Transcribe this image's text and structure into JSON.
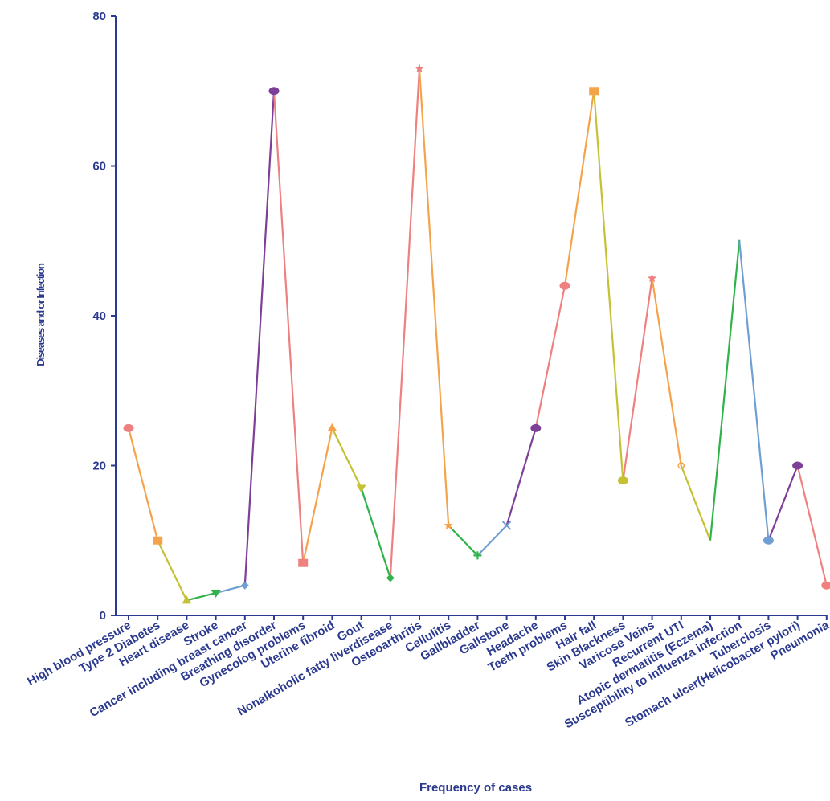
{
  "chart_data": {
    "type": "line",
    "xlabel": "Frequency of cases",
    "ylabel": "Diseases and or Infection",
    "ylim": [
      0,
      80
    ],
    "yticks": [
      0,
      20,
      40,
      60,
      80
    ],
    "grid": false,
    "categories": [
      "High blood pressure",
      "Type 2 Diabetes",
      "Heart disease",
      "Stroke",
      "Cancer including breast cancer",
      "Breathing disorder",
      "Gynecolog problems",
      "Uterine fibroid",
      "Gout",
      "Nonalkoholic fatty liverdisease",
      "Osteoarthritis",
      "Cellulitis",
      "Gallbladder",
      "Gallstone",
      "Headache",
      "Teeth problems",
      "Hair fall",
      "Skin Blackness",
      "Varicose Veins",
      "Recurrent UTI",
      "Atopic dermatitis (Eczema)",
      "Susceptibility to influenza infection",
      "Tuberclosis",
      "Stomach ulcer(Helicobacter pylori)",
      "Pneumonia"
    ],
    "values": [
      25,
      10,
      2,
      3,
      4,
      70,
      7,
      25,
      17,
      5,
      73,
      12,
      8,
      12,
      25,
      44,
      70,
      18,
      45,
      20,
      10,
      50,
      10,
      20,
      4
    ],
    "markers": [
      "circle",
      "square",
      "triangle-up",
      "triangle-down",
      "diamond",
      "circle",
      "square",
      "triangle-up",
      "triangle-down",
      "diamond",
      "star",
      "star",
      "plus",
      "cross",
      "circle",
      "circle",
      "square",
      "circle",
      "star",
      "circle-open",
      "none",
      "none",
      "circle",
      "circle",
      "circle"
    ],
    "colors": [
      "#ee8080",
      "#f5a34a",
      "#c4c234",
      "#2fb34a",
      "#6f9fd2",
      "#7e3f98",
      "#ee8080",
      "#f5a34a",
      "#c4c234",
      "#2fb34a",
      "#ee8080",
      "#f5a34a",
      "#2fb34a",
      "#6f9fd2",
      "#7e3f98",
      "#ee8080",
      "#f5a34a",
      "#c4c234",
      "#ee8080",
      "#f5a34a",
      "#c4c234",
      "#2fb34a",
      "#6f9fd2",
      "#7e3f98",
      "#ee8080"
    ]
  }
}
